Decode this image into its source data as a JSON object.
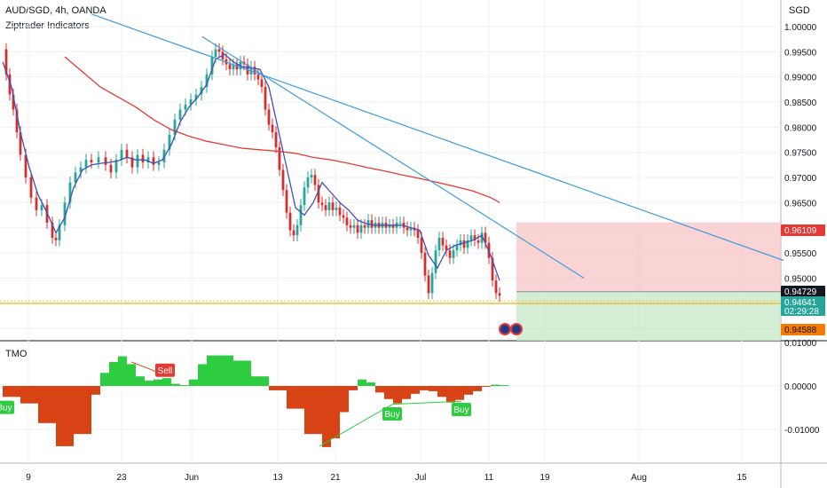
{
  "header": {
    "symbol_line": "AUD/SGD, 4h, OANDA",
    "indicator_line": "Ziptrader Indicators",
    "currency": "SGD",
    "oscillator_name": "TMO"
  },
  "colors": {
    "up": "#26a69a",
    "up_bright": "#2ecc40",
    "down": "#d32f2f",
    "ma_fast": "#3f51b5",
    "ma_slow": "#e53935",
    "trendline": "#3d9be0",
    "stop_zone": "#f8c6c6",
    "target_zone": "#c8eacb",
    "entry_line": "#f0c040",
    "stop_tag": "#e53935",
    "current_tag": "#26a69a",
    "target_tag": "#f57c00",
    "entry_tag": "#131722",
    "tmo_pos": "#2ecc40",
    "tmo_neg": "#d84315"
  },
  "chart_data": [
    {
      "type": "line",
      "title": "AUD/SGD, 4h, OANDA",
      "x_axis": {
        "tick_labels": [
          "9",
          "23",
          "Jun",
          "13",
          "21",
          "Jul",
          "11",
          "19",
          "Aug",
          "15"
        ]
      },
      "y_axis": {
        "tick_labels": [
          "1.00000",
          "0.99500",
          "0.99000",
          "0.98500",
          "0.98000",
          "0.97500",
          "0.97000",
          "0.96500",
          "0.96000",
          "0.95500",
          "0.95000",
          "0.94500",
          "0.94000"
        ],
        "ylim": [
          0.9395,
          1.0015
        ]
      },
      "series": [
        {
          "name": "price",
          "x": [
            0,
            4,
            8,
            12,
            16,
            20,
            26,
            32,
            38,
            44,
            50,
            56,
            60,
            64,
            70,
            76,
            82,
            88,
            94,
            100,
            108,
            116,
            122,
            128,
            134,
            140,
            146,
            152,
            158,
            164,
            170,
            176,
            182,
            188,
            194,
            200,
            206,
            212,
            218,
            224,
            230,
            236,
            240,
            244,
            248,
            252,
            256,
            260,
            264,
            268,
            272,
            276,
            280,
            284,
            288,
            292,
            296,
            300,
            304,
            308,
            312,
            316,
            320,
            324,
            328,
            332,
            336,
            340,
            344,
            348,
            352,
            356,
            360,
            364,
            368,
            372,
            376,
            380,
            384,
            388,
            392,
            396,
            400,
            404,
            408,
            412,
            416,
            420,
            424,
            428,
            432,
            436,
            440,
            444,
            448,
            452,
            456,
            460,
            464,
            468,
            472,
            476,
            480,
            484,
            488,
            492,
            496,
            500,
            504,
            508,
            512,
            516,
            520,
            524,
            528,
            532,
            536,
            540,
            544,
            548,
            552,
            556,
            560
          ],
          "y": [
            0.9955,
            0.9905,
            0.9865,
            0.9835,
            0.979,
            0.9745,
            0.97,
            0.966,
            0.9635,
            0.9645,
            0.961,
            0.958,
            0.9575,
            0.9605,
            0.965,
            0.969,
            0.971,
            0.972,
            0.9735,
            0.973,
            0.974,
            0.9725,
            0.971,
            0.9735,
            0.9755,
            0.974,
            0.972,
            0.9745,
            0.973,
            0.974,
            0.9725,
            0.973,
            0.9755,
            0.9785,
            0.9815,
            0.9835,
            0.9845,
            0.9855,
            0.9865,
            0.988,
            0.9905,
            0.994,
            0.9955,
            0.995,
            0.9935,
            0.9925,
            0.9915,
            0.9925,
            0.9915,
            0.993,
            0.9925,
            0.9905,
            0.992,
            0.9905,
            0.9895,
            0.988,
            0.9835,
            0.9805,
            0.979,
            0.976,
            0.9715,
            0.9675,
            0.963,
            0.9595,
            0.9585,
            0.9605,
            0.9645,
            0.968,
            0.97,
            0.9705,
            0.9685,
            0.965,
            0.9645,
            0.9635,
            0.965,
            0.9635,
            0.964,
            0.9625,
            0.962,
            0.9605,
            0.96,
            0.9605,
            0.959,
            0.9605,
            0.96,
            0.9615,
            0.96,
            0.961,
            0.96,
            0.961,
            0.96,
            0.9605,
            0.96,
            0.961,
            0.961,
            0.96,
            0.9595,
            0.96,
            0.9595,
            0.958,
            0.955,
            0.9505,
            0.947,
            0.951,
            0.9555,
            0.958,
            0.9565,
            0.9555,
            0.954,
            0.9555,
            0.9565,
            0.9575,
            0.956,
            0.9575,
            0.9585,
            0.9575,
            0.957,
            0.959,
            0.957,
            0.954,
            0.9495,
            0.947,
            0.9465
          ]
        },
        {
          "name": "ma_fast",
          "x": [
            0,
            10,
            20,
            30,
            40,
            50,
            60,
            70,
            80,
            90,
            100,
            110,
            120,
            130,
            140,
            150,
            160,
            170,
            180,
            190,
            200,
            210,
            220,
            230,
            240,
            250,
            260,
            270,
            280,
            290,
            300,
            310,
            320,
            330,
            340,
            350,
            360,
            370,
            380,
            390,
            400,
            410,
            420,
            430,
            440,
            450,
            460,
            470,
            480,
            490,
            500,
            510,
            520,
            530,
            540,
            550,
            560
          ],
          "y": [
            0.993,
            0.988,
            0.979,
            0.972,
            0.9665,
            0.963,
            0.959,
            0.962,
            0.968,
            0.9715,
            0.9725,
            0.9728,
            0.973,
            0.9733,
            0.974,
            0.9735,
            0.9735,
            0.9728,
            0.9735,
            0.9765,
            0.981,
            0.984,
            0.986,
            0.9885,
            0.9935,
            0.9945,
            0.993,
            0.992,
            0.9918,
            0.9915,
            0.988,
            0.98,
            0.972,
            0.964,
            0.9625,
            0.965,
            0.969,
            0.967,
            0.965,
            0.9635,
            0.9615,
            0.9608,
            0.9605,
            0.9605,
            0.9605,
            0.9605,
            0.96,
            0.9595,
            0.9545,
            0.952,
            0.9555,
            0.9565,
            0.957,
            0.9575,
            0.9585,
            0.9545,
            0.9495
          ]
        },
        {
          "name": "ma_slow",
          "x": [
            70,
            90,
            110,
            130,
            150,
            170,
            190,
            210,
            230,
            250,
            270,
            290,
            310,
            330,
            350,
            370,
            390,
            410,
            430,
            450,
            470,
            490,
            510,
            530,
            550,
            560
          ],
          "y": [
            0.994,
            0.991,
            0.988,
            0.986,
            0.984,
            0.9815,
            0.9795,
            0.9782,
            0.9772,
            0.9765,
            0.9758,
            0.9755,
            0.9752,
            0.9748,
            0.974,
            0.9735,
            0.9728,
            0.972,
            0.9713,
            0.9705,
            0.9698,
            0.969,
            0.9682,
            0.9673,
            0.966,
            0.965
          ]
        },
        {
          "name": "trendline_outer",
          "x": [
            100,
            880
          ],
          "y": [
            1.0025,
            0.9535
          ]
        },
        {
          "name": "trendline_inner",
          "x": [
            225,
            655
          ],
          "y": [
            0.998,
            0.95
          ]
        }
      ],
      "position_levels": {
        "stop": 0.96109,
        "entry": 0.94729,
        "current": 0.94641,
        "target": 0.94588
      },
      "price_tags": [
        "0.96109",
        "0.94729",
        "0.94641",
        "0.94588"
      ],
      "countdown": "02:29:28"
    },
    {
      "type": "bar",
      "title": "TMO",
      "y_axis": {
        "tick_labels": [
          "0.01000",
          "0.00000",
          "-0.01000"
        ],
        "ylim": [
          -0.0148,
          0.0105
        ]
      },
      "x": [
        0,
        20,
        40,
        60,
        80,
        100,
        110,
        120,
        130,
        140,
        150,
        160,
        170,
        180,
        190,
        200,
        210,
        220,
        230,
        240,
        260,
        280,
        300,
        320,
        340,
        360,
        370,
        380,
        390,
        400,
        410,
        420,
        430,
        440,
        450,
        460,
        470,
        480,
        490,
        500,
        510,
        520,
        530,
        540,
        550,
        560
      ],
      "values": [
        -0.0025,
        -0.004,
        -0.0085,
        -0.0138,
        -0.011,
        -0.002,
        0.003,
        0.0055,
        0.0068,
        0.005,
        0.0022,
        0.0012,
        0.0015,
        0.0018,
        0.0005,
        0.0002,
        0.0015,
        0.005,
        0.007,
        0.007,
        0.0058,
        0.0022,
        -0.001,
        -0.0052,
        -0.011,
        -0.014,
        -0.012,
        -0.006,
        -0.001,
        0.0015,
        0.0008,
        -0.0015,
        -0.003,
        -0.004,
        -0.003,
        -0.0018,
        -0.001,
        -0.0012,
        -0.0025,
        -0.0038,
        -0.0032,
        -0.002,
        -0.0012,
        -0.0002,
        0.0003,
        0.0002
      ],
      "signals": [
        {
          "label": "Buy",
          "x": 2,
          "value": -0.005
        },
        {
          "label": "Sell",
          "x": 183,
          "value": 0.0035
        },
        {
          "label": "Buy",
          "x": 439,
          "value": -0.0065
        },
        {
          "label": "Buy",
          "x": 517,
          "value": -0.0055
        }
      ]
    }
  ]
}
